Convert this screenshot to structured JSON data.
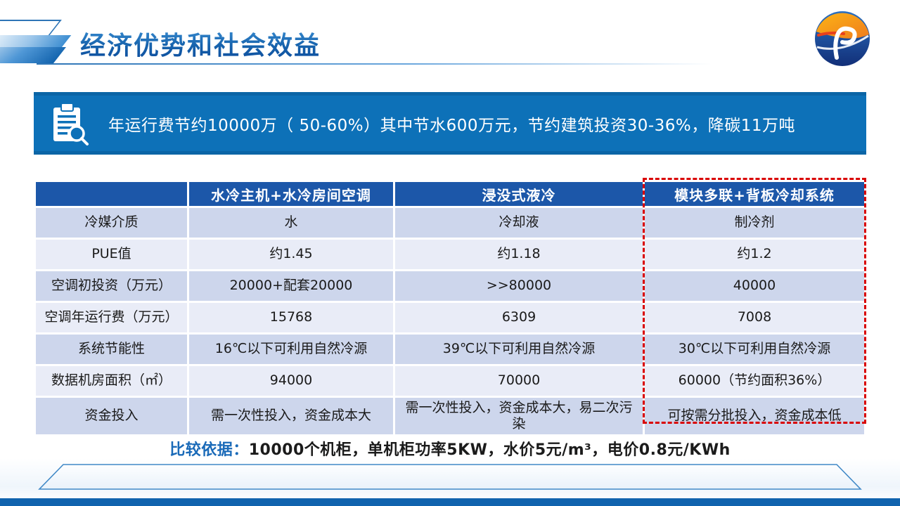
{
  "header": {
    "title": "经济优势和社会效益",
    "logo": "company-logo-sphere"
  },
  "banner": {
    "icon": "clipboard-magnifier",
    "text": "年运行费节约10000万（ 50-60%）其中节水600万元，节约建筑投资30-36%，降碳11万吨"
  },
  "table": {
    "columns": [
      "",
      "水冷主机+水冷房间空调",
      "浸没式液冷",
      "模块多联+背板冷却系统"
    ],
    "highlighted_column": "模块多联+背板冷却系统",
    "rows": [
      {
        "label": "冷媒介质",
        "values": [
          "水",
          "冷却液",
          "制冷剂"
        ]
      },
      {
        "label": "PUE值",
        "values": [
          "约1.45",
          "约1.18",
          "约1.2"
        ]
      },
      {
        "label": "空调初投资（万元）",
        "values": [
          "20000+配套20000",
          ">>80000",
          "40000"
        ]
      },
      {
        "label": "空调年运行费（万元）",
        "values": [
          "15768",
          "6309",
          "7008"
        ]
      },
      {
        "label": "系统节能性",
        "values": [
          "16℃以下可利用自然冷源",
          "39℃以下可利用自然冷源",
          "30℃以下可利用自然冷源"
        ]
      },
      {
        "label": "数据机房面积（㎡）",
        "values": [
          "94000",
          "70000",
          "60000（节约面积36%）"
        ]
      },
      {
        "label": "资金投入",
        "values": [
          "需一次性投入，资金成本大",
          "需一次性投入，资金成本大，易二次污染",
          "可按需分批投入，资金成本低"
        ]
      }
    ]
  },
  "note": {
    "label": "比较依据：",
    "text": "10000个机柜，单机柜功率5KW，水价5元/m³，电价0.8元/KWh"
  },
  "colors": {
    "accent": "#2e75b6",
    "banner": "#0d71b8",
    "thead": "#1c57a9",
    "row-odd": "#cdd6ec",
    "row-even": "#e9ecf7",
    "red": "#d90000",
    "bar": "#1063ae"
  }
}
